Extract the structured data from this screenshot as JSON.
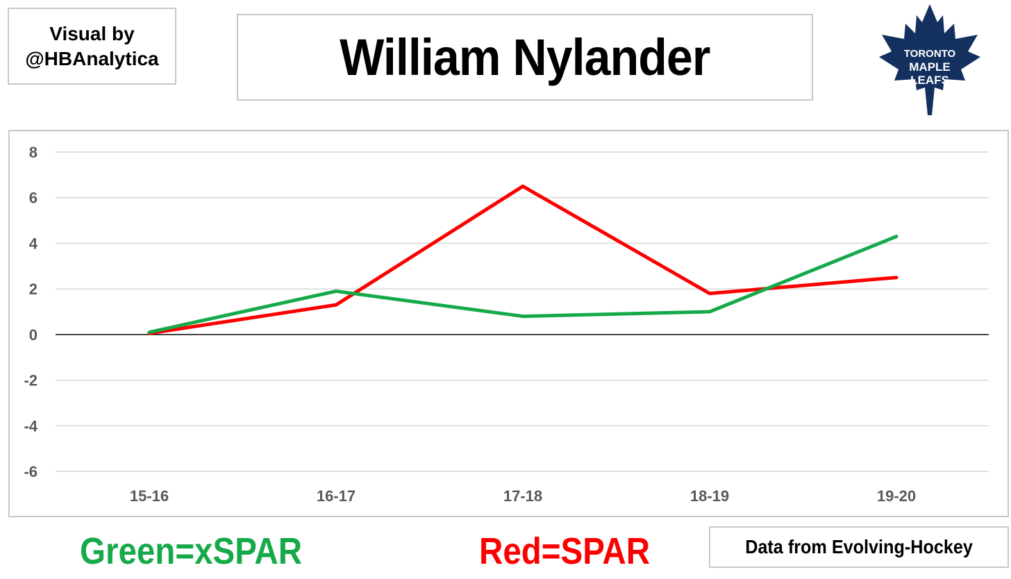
{
  "credit": {
    "line1": "Visual by",
    "line2": "@HBAnalytica"
  },
  "title": "William Nylander",
  "logo": {
    "icon": "maple-leaf-logo",
    "text": [
      "TORONTO",
      "MAPLE",
      "LEAFS"
    ],
    "color": "#13305f"
  },
  "legend": {
    "green": {
      "label": "Green=xSPAR",
      "color": "#16a94a"
    },
    "red": {
      "label": "Red=SPAR",
      "color": "#fb0000"
    }
  },
  "source": "Data from Evolving-Hockey",
  "chart_data": {
    "type": "line",
    "categories": [
      "15-16",
      "16-17",
      "17-18",
      "18-19",
      "19-20"
    ],
    "ylim": [
      -6,
      8
    ],
    "yticks": [
      8,
      6,
      4,
      2,
      0,
      -2,
      -4,
      -6
    ],
    "grid": true,
    "series": [
      {
        "name": "SPAR",
        "color": "#fb0000",
        "values": [
          0.05,
          1.3,
          6.5,
          1.8,
          2.5
        ]
      },
      {
        "name": "xSPAR",
        "color": "#16a94a",
        "values": [
          0.1,
          1.9,
          0.8,
          1.0,
          4.3
        ]
      }
    ]
  }
}
